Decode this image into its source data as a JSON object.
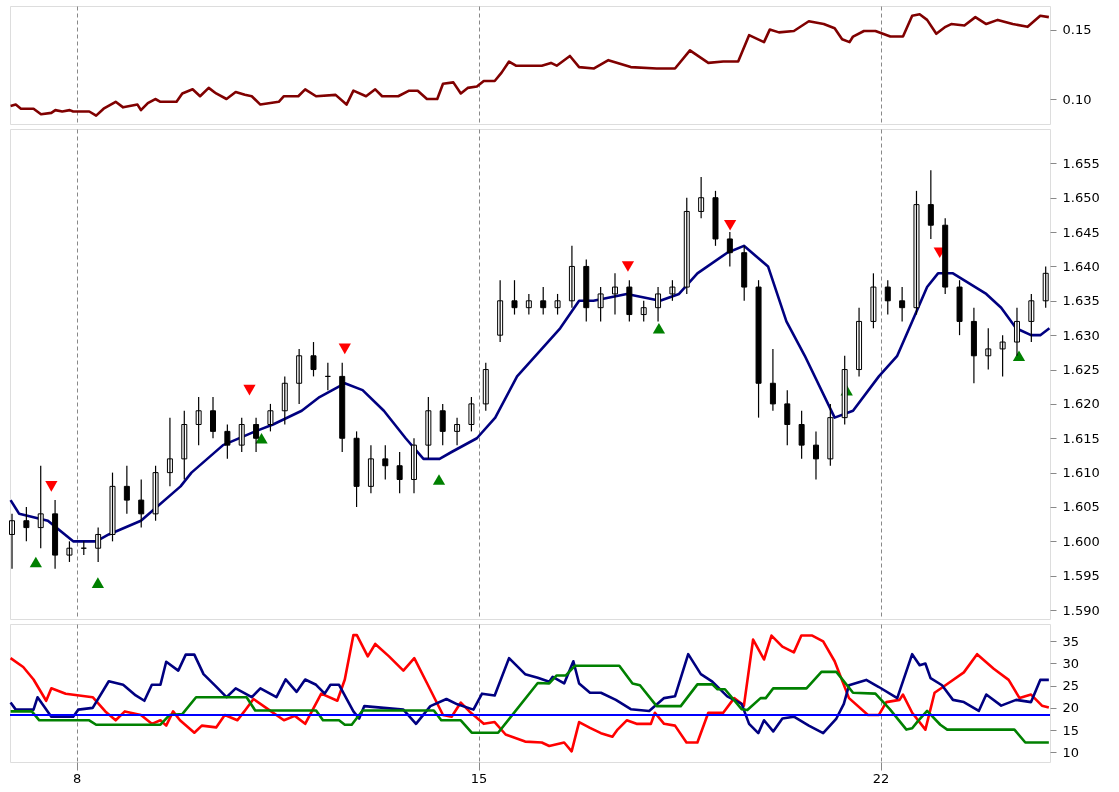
{
  "chart_data": [
    {
      "type": "line",
      "xlim": [
        6.84,
        24.95
      ],
      "xticks": [
        8,
        15,
        22
      ],
      "ylim": [
        0.082,
        0.167
      ],
      "yticks": [
        {
          "value": 0.1,
          "label": "0.10"
        },
        {
          "value": 0.15,
          "label": "0.15"
        }
      ],
      "grid": "x",
      "tick_labels": "y",
      "series": [
        {
          "color": "#800000",
          "x": [
            6.85,
            6.94,
            7.03,
            7.25,
            7.38,
            7.56,
            7.63,
            7.75,
            7.88,
            7.94,
            8.22,
            8.34,
            8.47,
            8.68,
            8.81,
            9.06,
            9.12,
            9.24,
            9.37,
            9.46,
            9.74,
            9.84,
            10.02,
            10.15,
            10.3,
            10.43,
            10.61,
            10.77,
            10.93,
            11.05,
            11.2,
            11.52,
            11.61,
            11.86,
            11.98,
            12.17,
            12.51,
            12.7,
            12.82,
            13.04,
            13.2,
            13.32,
            13.6,
            13.79,
            13.94,
            14.1,
            14.28,
            14.38,
            14.56,
            14.69,
            14.81,
            14.97,
            15.09,
            15.28,
            15.4,
            15.53,
            15.65,
            15.96,
            16.1,
            16.26,
            16.36,
            16.59,
            16.75,
            17.01,
            17.26,
            17.65,
            18.1,
            18.42,
            18.68,
            19.0,
            19.26,
            19.52,
            19.71,
            19.97,
            20.07,
            20.23,
            20.49,
            20.75,
            21.01,
            21.2,
            21.33,
            21.46,
            21.52,
            21.71,
            21.91,
            22.17,
            22.39,
            22.55,
            22.68,
            22.81,
            22.97,
            23.13,
            23.23,
            23.46,
            23.65,
            23.84,
            24.04,
            24.3,
            24.56,
            24.78,
            24.93
          ],
          "values": [
            0.095,
            0.096,
            0.093,
            0.093,
            0.089,
            0.09,
            0.092,
            0.091,
            0.092,
            0.091,
            0.091,
            0.088,
            0.093,
            0.098,
            0.094,
            0.096,
            0.092,
            0.097,
            0.1,
            0.098,
            0.098,
            0.104,
            0.107,
            0.102,
            0.108,
            0.104,
            0.1,
            0.105,
            0.103,
            0.102,
            0.096,
            0.098,
            0.102,
            0.102,
            0.107,
            0.102,
            0.103,
            0.096,
            0.106,
            0.102,
            0.107,
            0.102,
            0.102,
            0.106,
            0.106,
            0.1,
            0.1,
            0.111,
            0.112,
            0.104,
            0.108,
            0.109,
            0.113,
            0.113,
            0.119,
            0.127,
            0.124,
            0.124,
            0.124,
            0.126,
            0.124,
            0.131,
            0.123,
            0.122,
            0.128,
            0.123,
            0.122,
            0.122,
            0.135,
            0.126,
            0.127,
            0.127,
            0.146,
            0.141,
            0.15,
            0.148,
            0.149,
            0.156,
            0.154,
            0.151,
            0.143,
            0.141,
            0.145,
            0.149,
            0.149,
            0.145,
            0.145,
            0.16,
            0.161,
            0.157,
            0.147,
            0.152,
            0.154,
            0.153,
            0.159,
            0.154,
            0.157,
            0.154,
            0.152,
            0.16,
            0.159
          ]
        }
      ]
    },
    {
      "type": "candlestick",
      "xlim": [
        6.84,
        24.95
      ],
      "xticks": [
        8,
        15,
        22
      ],
      "ylim": [
        1.5887,
        1.66
      ],
      "yticks": [
        {
          "value": 1.59,
          "label": "1.590"
        },
        {
          "value": 1.595,
          "label": "1.595"
        },
        {
          "value": 1.6,
          "label": "1.600"
        },
        {
          "value": 1.605,
          "label": "1.605"
        },
        {
          "value": 1.61,
          "label": "1.610"
        },
        {
          "value": 1.615,
          "label": "1.615"
        },
        {
          "value": 1.62,
          "label": "1.620"
        },
        {
          "value": 1.625,
          "label": "1.625"
        },
        {
          "value": 1.63,
          "label": "1.630"
        },
        {
          "value": 1.635,
          "label": "1.635"
        },
        {
          "value": 1.64,
          "label": "1.640"
        },
        {
          "value": 1.645,
          "label": "1.645"
        },
        {
          "value": 1.65,
          "label": "1.650"
        },
        {
          "value": 1.655,
          "label": "1.655"
        }
      ],
      "grid": "x",
      "tick_labels": "y",
      "x": [
        6.875,
        7.125,
        7.375,
        7.625,
        7.875,
        8.125,
        8.375,
        8.625,
        8.875,
        9.125,
        9.375,
        9.625,
        9.875,
        10.125,
        10.375,
        10.625,
        10.875,
        11.125,
        11.375,
        11.625,
        11.875,
        12.125,
        12.375,
        12.625,
        12.875,
        13.125,
        13.375,
        13.625,
        13.875,
        14.125,
        14.375,
        14.625,
        14.875,
        15.125,
        15.375,
        15.625,
        15.875,
        16.125,
        16.375,
        16.625,
        16.875,
        17.125,
        17.375,
        17.625,
        17.875,
        18.125,
        18.375,
        18.625,
        18.875,
        19.125,
        19.375,
        19.625,
        19.875,
        20.125,
        20.375,
        20.625,
        20.875,
        21.125,
        21.375,
        21.625,
        21.875,
        22.125,
        22.375,
        22.625,
        22.875,
        23.125,
        23.375,
        23.625,
        23.875,
        24.125,
        24.375,
        24.625,
        24.875
      ],
      "ohlc": [
        [
          1.601,
          1.604,
          1.596,
          1.603
        ],
        [
          1.603,
          1.605,
          1.6,
          1.602
        ],
        [
          1.602,
          1.611,
          1.599,
          1.604
        ],
        [
          1.604,
          1.606,
          1.596,
          1.598
        ],
        [
          1.598,
          1.6,
          1.597,
          1.599
        ],
        [
          1.599,
          1.6,
          1.598,
          1.599
        ],
        [
          1.599,
          1.602,
          1.597,
          1.601
        ],
        [
          1.601,
          1.61,
          1.6,
          1.608
        ],
        [
          1.608,
          1.611,
          1.604,
          1.606
        ],
        [
          1.606,
          1.609,
          1.602,
          1.604
        ],
        [
          1.604,
          1.611,
          1.603,
          1.61
        ],
        [
          1.61,
          1.618,
          1.608,
          1.612
        ],
        [
          1.612,
          1.619,
          1.609,
          1.617
        ],
        [
          1.617,
          1.621,
          1.614,
          1.619
        ],
        [
          1.619,
          1.621,
          1.615,
          1.616
        ],
        [
          1.616,
          1.617,
          1.612,
          1.614
        ],
        [
          1.614,
          1.618,
          1.613,
          1.617
        ],
        [
          1.617,
          1.618,
          1.613,
          1.615
        ],
        [
          1.617,
          1.62,
          1.616,
          1.619
        ],
        [
          1.619,
          1.624,
          1.617,
          1.623
        ],
        [
          1.623,
          1.628,
          1.62,
          1.627
        ],
        [
          1.627,
          1.629,
          1.624,
          1.625
        ],
        [
          1.624,
          1.626,
          1.622,
          1.624
        ],
        [
          1.624,
          1.626,
          1.613,
          1.615
        ],
        [
          1.615,
          1.616,
          1.605,
          1.608
        ],
        [
          1.608,
          1.614,
          1.607,
          1.612
        ],
        [
          1.612,
          1.614,
          1.609,
          1.611
        ],
        [
          1.611,
          1.613,
          1.607,
          1.609
        ],
        [
          1.609,
          1.615,
          1.607,
          1.614
        ],
        [
          1.614,
          1.621,
          1.612,
          1.619
        ],
        [
          1.619,
          1.62,
          1.614,
          1.616
        ],
        [
          1.616,
          1.618,
          1.614,
          1.617
        ],
        [
          1.617,
          1.621,
          1.616,
          1.62
        ],
        [
          1.62,
          1.626,
          1.619,
          1.625
        ],
        [
          1.63,
          1.638,
          1.629,
          1.635
        ],
        [
          1.635,
          1.638,
          1.633,
          1.634
        ],
        [
          1.634,
          1.636,
          1.633,
          1.635
        ],
        [
          1.635,
          1.637,
          1.633,
          1.634
        ],
        [
          1.634,
          1.636,
          1.633,
          1.635
        ],
        [
          1.635,
          1.643,
          1.634,
          1.64
        ],
        [
          1.64,
          1.641,
          1.632,
          1.634
        ],
        [
          1.634,
          1.637,
          1.632,
          1.636
        ],
        [
          1.636,
          1.639,
          1.633,
          1.637
        ],
        [
          1.637,
          1.638,
          1.632,
          1.633
        ],
        [
          1.633,
          1.635,
          1.632,
          1.634
        ],
        [
          1.634,
          1.637,
          1.632,
          1.636
        ],
        [
          1.636,
          1.638,
          1.635,
          1.637
        ],
        [
          1.637,
          1.65,
          1.636,
          1.648
        ],
        [
          1.648,
          1.653,
          1.647,
          1.65
        ],
        [
          1.65,
          1.651,
          1.643,
          1.644
        ],
        [
          1.644,
          1.645,
          1.64,
          1.642
        ],
        [
          1.642,
          1.643,
          1.635,
          1.637
        ],
        [
          1.637,
          1.638,
          1.618,
          1.623
        ],
        [
          1.623,
          1.628,
          1.619,
          1.62
        ],
        [
          1.62,
          1.622,
          1.614,
          1.617
        ],
        [
          1.617,
          1.619,
          1.612,
          1.614
        ],
        [
          1.614,
          1.616,
          1.609,
          1.612
        ],
        [
          1.612,
          1.62,
          1.611,
          1.618
        ],
        [
          1.618,
          1.627,
          1.617,
          1.625
        ],
        [
          1.625,
          1.634,
          1.624,
          1.632
        ],
        [
          1.632,
          1.639,
          1.631,
          1.637
        ],
        [
          1.637,
          1.638,
          1.633,
          1.635
        ],
        [
          1.635,
          1.637,
          1.632,
          1.634
        ],
        [
          1.634,
          1.651,
          1.633,
          1.649
        ],
        [
          1.649,
          1.654,
          1.644,
          1.646
        ],
        [
          1.646,
          1.647,
          1.636,
          1.637
        ],
        [
          1.637,
          1.638,
          1.63,
          1.632
        ],
        [
          1.632,
          1.634,
          1.623,
          1.627
        ],
        [
          1.627,
          1.631,
          1.625,
          1.628
        ],
        [
          1.628,
          1.63,
          1.624,
          1.629
        ],
        [
          1.629,
          1.634,
          1.627,
          1.632
        ],
        [
          1.632,
          1.636,
          1.629,
          1.635
        ],
        [
          1.635,
          1.64,
          1.634,
          1.639
        ]
      ],
      "series": [
        {
          "type": "line",
          "color": "#000080",
          "x": [
            6.85,
            7.0,
            7.5,
            7.94,
            8.34,
            8.56,
            9.12,
            9.81,
            10.0,
            10.55,
            11.11,
            11.42,
            11.92,
            12.23,
            12.67,
            12.98,
            13.35,
            13.73,
            14.04,
            14.32,
            14.53,
            14.97,
            15.29,
            15.67,
            16.1,
            16.42,
            16.75,
            17.0,
            17.58,
            18.16,
            18.49,
            18.81,
            19.33,
            19.62,
            20.04,
            20.36,
            20.68,
            21.2,
            21.52,
            21.97,
            22.29,
            22.55,
            22.81,
            23.0,
            23.26,
            23.84,
            24.1,
            24.36,
            24.62,
            24.78,
            24.94
          ],
          "values": [
            1.606,
            1.604,
            1.603,
            1.6,
            1.6,
            1.601,
            1.603,
            1.608,
            1.61,
            1.614,
            1.616,
            1.617,
            1.619,
            1.621,
            1.623,
            1.622,
            1.619,
            1.615,
            1.612,
            1.612,
            1.613,
            1.615,
            1.618,
            1.624,
            1.628,
            1.631,
            1.635,
            1.635,
            1.636,
            1.635,
            1.636,
            1.639,
            1.642,
            1.643,
            1.64,
            1.632,
            1.627,
            1.618,
            1.619,
            1.624,
            1.627,
            1.632,
            1.637,
            1.639,
            1.639,
            1.636,
            1.634,
            1.631,
            1.63,
            1.63,
            1.631
          ]
        },
        {
          "type": "scatter",
          "marker": "triangle-down",
          "color": "#ff0000",
          "x": [
            7.56,
            11.01,
            12.67,
            17.6,
            19.38,
            23.03
          ],
          "values": [
            1.608,
            1.622,
            1.628,
            1.64,
            1.646,
            1.642
          ]
        },
        {
          "type": "scatter",
          "marker": "triangle",
          "color": "#008000",
          "x": [
            7.29,
            8.37,
            11.22,
            14.31,
            18.14,
            21.41,
            24.41
          ],
          "values": [
            1.597,
            1.594,
            1.615,
            1.609,
            1.631,
            1.622,
            1.627
          ]
        }
      ]
    },
    {
      "type": "line",
      "xlim": [
        6.84,
        24.95
      ],
      "xticks": [
        8,
        15,
        22
      ],
      "ylim": [
        7.8,
        38.9
      ],
      "yticks": [
        10,
        15,
        20,
        25,
        30,
        35
      ],
      "grid": "x",
      "ref_lines": [
        {
          "axis": "y",
          "value": 18.4,
          "color": "#0000ff"
        }
      ],
      "series": [
        {
          "color": "#ff0000",
          "x": [
            6.85,
            7.07,
            7.25,
            7.47,
            7.56,
            7.81,
            8.28,
            8.5,
            8.68,
            8.84,
            9.12,
            9.31,
            9.46,
            9.56,
            9.68,
            9.8,
            10.05,
            10.18,
            10.43,
            10.58,
            10.8,
            10.92,
            11.08,
            11.3,
            11.61,
            11.8,
            11.98,
            12.26,
            12.54,
            12.67,
            12.82,
            12.88,
            13.07,
            13.2,
            13.44,
            13.69,
            13.88,
            14.1,
            14.38,
            14.53,
            14.69,
            14.84,
            15.09,
            15.28,
            15.47,
            15.81,
            16.1,
            16.23,
            16.49,
            16.62,
            16.75,
            16.94,
            17.13,
            17.33,
            17.42,
            17.58,
            17.75,
            18.0,
            18.07,
            18.23,
            18.42,
            18.62,
            18.81,
            19.0,
            19.26,
            19.45,
            19.62,
            19.78,
            19.97,
            20.1,
            20.29,
            20.49,
            20.62,
            20.81,
            21.0,
            21.2,
            21.45,
            21.78,
            21.97,
            22.1,
            22.33,
            22.39,
            22.55,
            22.78,
            22.94,
            23.13,
            23.45,
            23.68,
            23.97,
            24.23,
            24.42,
            24.62,
            24.81,
            24.93
          ],
          "values": [
            31.2,
            29.2,
            26.4,
            21.6,
            24.4,
            23.2,
            22.4,
            19.2,
            17.2,
            19.2,
            18.4,
            16.4,
            17.2,
            16.0,
            19.2,
            17.2,
            14.4,
            16.0,
            15.6,
            18.4,
            17.2,
            19.2,
            22.0,
            20.0,
            17.2,
            18.2,
            16.4,
            23.2,
            21.6,
            26.4,
            36.4,
            36.4,
            31.6,
            34.4,
            31.6,
            28.4,
            31.2,
            25.6,
            18.4,
            18.0,
            21.2,
            19.2,
            16.4,
            16.8,
            14.0,
            12.4,
            12.2,
            11.4,
            12.2,
            10.2,
            16.8,
            15.5,
            14.3,
            13.5,
            15.1,
            17.2,
            16.4,
            16.4,
            18.9,
            16.4,
            16.0,
            12.2,
            12.2,
            18.9,
            18.9,
            22.2,
            20.5,
            35.4,
            30.9,
            36.3,
            33.8,
            32.5,
            36.3,
            36.3,
            35.0,
            30.5,
            22.2,
            18.4,
            18.4,
            21.3,
            21.8,
            23.0,
            18.9,
            15.1,
            23.4,
            25.1,
            28.0,
            32.1,
            28.8,
            26.3,
            22.2,
            23.0,
            20.5,
            20.1
          ]
        },
        {
          "color": "#000080",
          "x": [
            6.85,
            6.94,
            7.25,
            7.32,
            7.56,
            7.94,
            8.03,
            8.28,
            8.56,
            8.81,
            9.03,
            9.18,
            9.31,
            9.46,
            9.56,
            9.77,
            9.9,
            10.05,
            10.21,
            10.43,
            10.61,
            10.77,
            11.05,
            11.2,
            11.48,
            11.64,
            11.83,
            11.98,
            12.17,
            12.32,
            12.42,
            12.57,
            12.82,
            12.92,
            13.01,
            13.35,
            13.69,
            13.91,
            14.16,
            14.44,
            14.63,
            14.91,
            15.06,
            15.28,
            15.53,
            15.81,
            16.03,
            16.23,
            16.29,
            16.49,
            16.65,
            16.75,
            16.94,
            17.13,
            17.39,
            17.65,
            17.97,
            18.23,
            18.42,
            18.65,
            18.87,
            19.07,
            19.33,
            19.58,
            19.71,
            19.87,
            19.97,
            20.13,
            20.29,
            20.49,
            20.75,
            21.0,
            21.23,
            21.36,
            21.45,
            21.75,
            21.97,
            22.29,
            22.55,
            22.68,
            22.78,
            22.87,
            23.07,
            23.26,
            23.45,
            23.71,
            23.84,
            24.1,
            24.36,
            24.62,
            24.78,
            24.93
          ],
          "values": [
            21.2,
            19.6,
            19.6,
            22.4,
            18.0,
            18.0,
            19.6,
            20.0,
            26.0,
            25.2,
            22.8,
            21.6,
            25.2,
            25.2,
            30.4,
            28.4,
            32.0,
            32.0,
            27.6,
            24.8,
            22.4,
            24.4,
            22.4,
            24.4,
            22.4,
            26.4,
            23.6,
            26.4,
            25.2,
            23.2,
            25.2,
            25.2,
            19.2,
            17.6,
            20.4,
            20.0,
            19.6,
            16.4,
            20.4,
            22.0,
            20.8,
            19.6,
            23.2,
            22.8,
            31.2,
            27.6,
            26.8,
            25.9,
            27.0,
            25.5,
            30.5,
            25.5,
            23.4,
            23.4,
            21.8,
            19.7,
            19.3,
            22.2,
            22.6,
            32.1,
            27.6,
            25.9,
            22.6,
            20.9,
            16.4,
            14.3,
            17.2,
            14.7,
            17.6,
            18.0,
            16.0,
            14.3,
            17.6,
            20.9,
            25.1,
            26.3,
            24.7,
            22.2,
            32.1,
            29.6,
            30.0,
            26.7,
            25.1,
            21.8,
            21.3,
            19.3,
            23.0,
            20.5,
            21.8,
            21.3,
            26.3,
            26.3
          ]
        },
        {
          "color": "#008000",
          "x": [
            6.85,
            7.22,
            7.35,
            8.22,
            8.34,
            9.46,
            9.62,
            9.84,
            10.08,
            10.96,
            11.11,
            12.17,
            12.29,
            12.57,
            12.67,
            12.79,
            12.98,
            14.22,
            14.35,
            14.69,
            14.88,
            15.34,
            16.03,
            16.23,
            16.36,
            16.52,
            16.68,
            17.45,
            17.68,
            17.81,
            18.1,
            18.52,
            18.81,
            19.07,
            19.16,
            19.29,
            19.58,
            19.68,
            19.91,
            20.0,
            20.13,
            20.71,
            20.97,
            21.23,
            21.52,
            21.91,
            22.16,
            22.45,
            22.55,
            22.65,
            22.81,
            23.04,
            23.16,
            24.33,
            24.52,
            24.93
          ],
          "values": [
            19.2,
            19.2,
            17.2,
            17.2,
            16.2,
            16.2,
            18.4,
            18.6,
            22.4,
            22.4,
            19.4,
            19.4,
            17.2,
            17.2,
            16.2,
            16.2,
            19.4,
            19.4,
            17.2,
            17.2,
            14.4,
            14.4,
            25.6,
            25.5,
            27.3,
            27.3,
            29.5,
            29.5,
            25.5,
            25.1,
            20.4,
            20.4,
            25.3,
            25.3,
            24.2,
            24.2,
            19.7,
            19.5,
            22.2,
            22.2,
            24.4,
            24.4,
            28.1,
            28.1,
            23.4,
            23.2,
            19.7,
            15.1,
            15.4,
            17.0,
            19.3,
            16.2,
            15.1,
            15.1,
            12.2,
            12.2
          ]
        }
      ]
    }
  ]
}
